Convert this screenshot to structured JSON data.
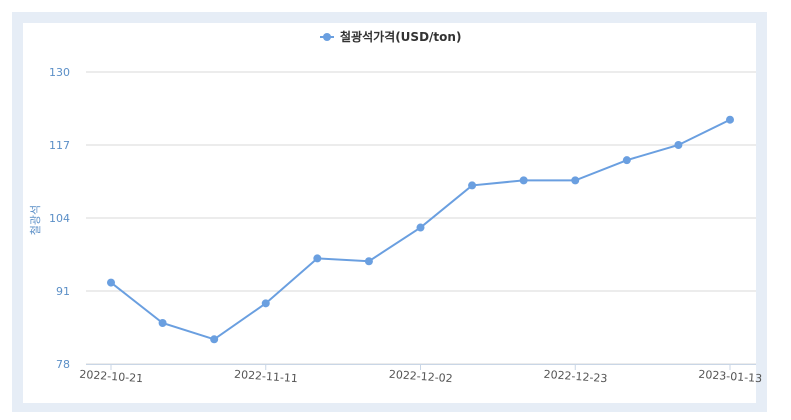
{
  "chart_data": {
    "type": "line",
    "ylabel": "철광석",
    "legend": "철광석가격(USD/ton)",
    "legend_position": "top-center",
    "grid": true,
    "ylim": [
      78,
      130
    ],
    "yticks": [
      "130",
      "117",
      "104",
      "91",
      "78"
    ],
    "xticks": [
      "2022-10-21",
      "2022-11-11",
      "2022-12-02",
      "2022-12-23",
      "2023-01-13"
    ],
    "x": [
      "2022-10-21",
      "2022-10-28",
      "2022-11-04",
      "2022-11-11",
      "2022-11-18",
      "2022-11-25",
      "2022-12-02",
      "2022-12-09",
      "2022-12-16",
      "2022-12-23",
      "2022-12-30",
      "2023-01-06",
      "2023-01-13"
    ],
    "series": [
      {
        "name": "철광석가격(USD/ton)",
        "color": "#6a9fe0",
        "values": [
          92.5,
          85.3,
          82.4,
          88.8,
          96.8,
          96.3,
          102.3,
          109.8,
          110.7,
          110.7,
          114.3,
          117.0,
          121.5
        ]
      }
    ]
  }
}
